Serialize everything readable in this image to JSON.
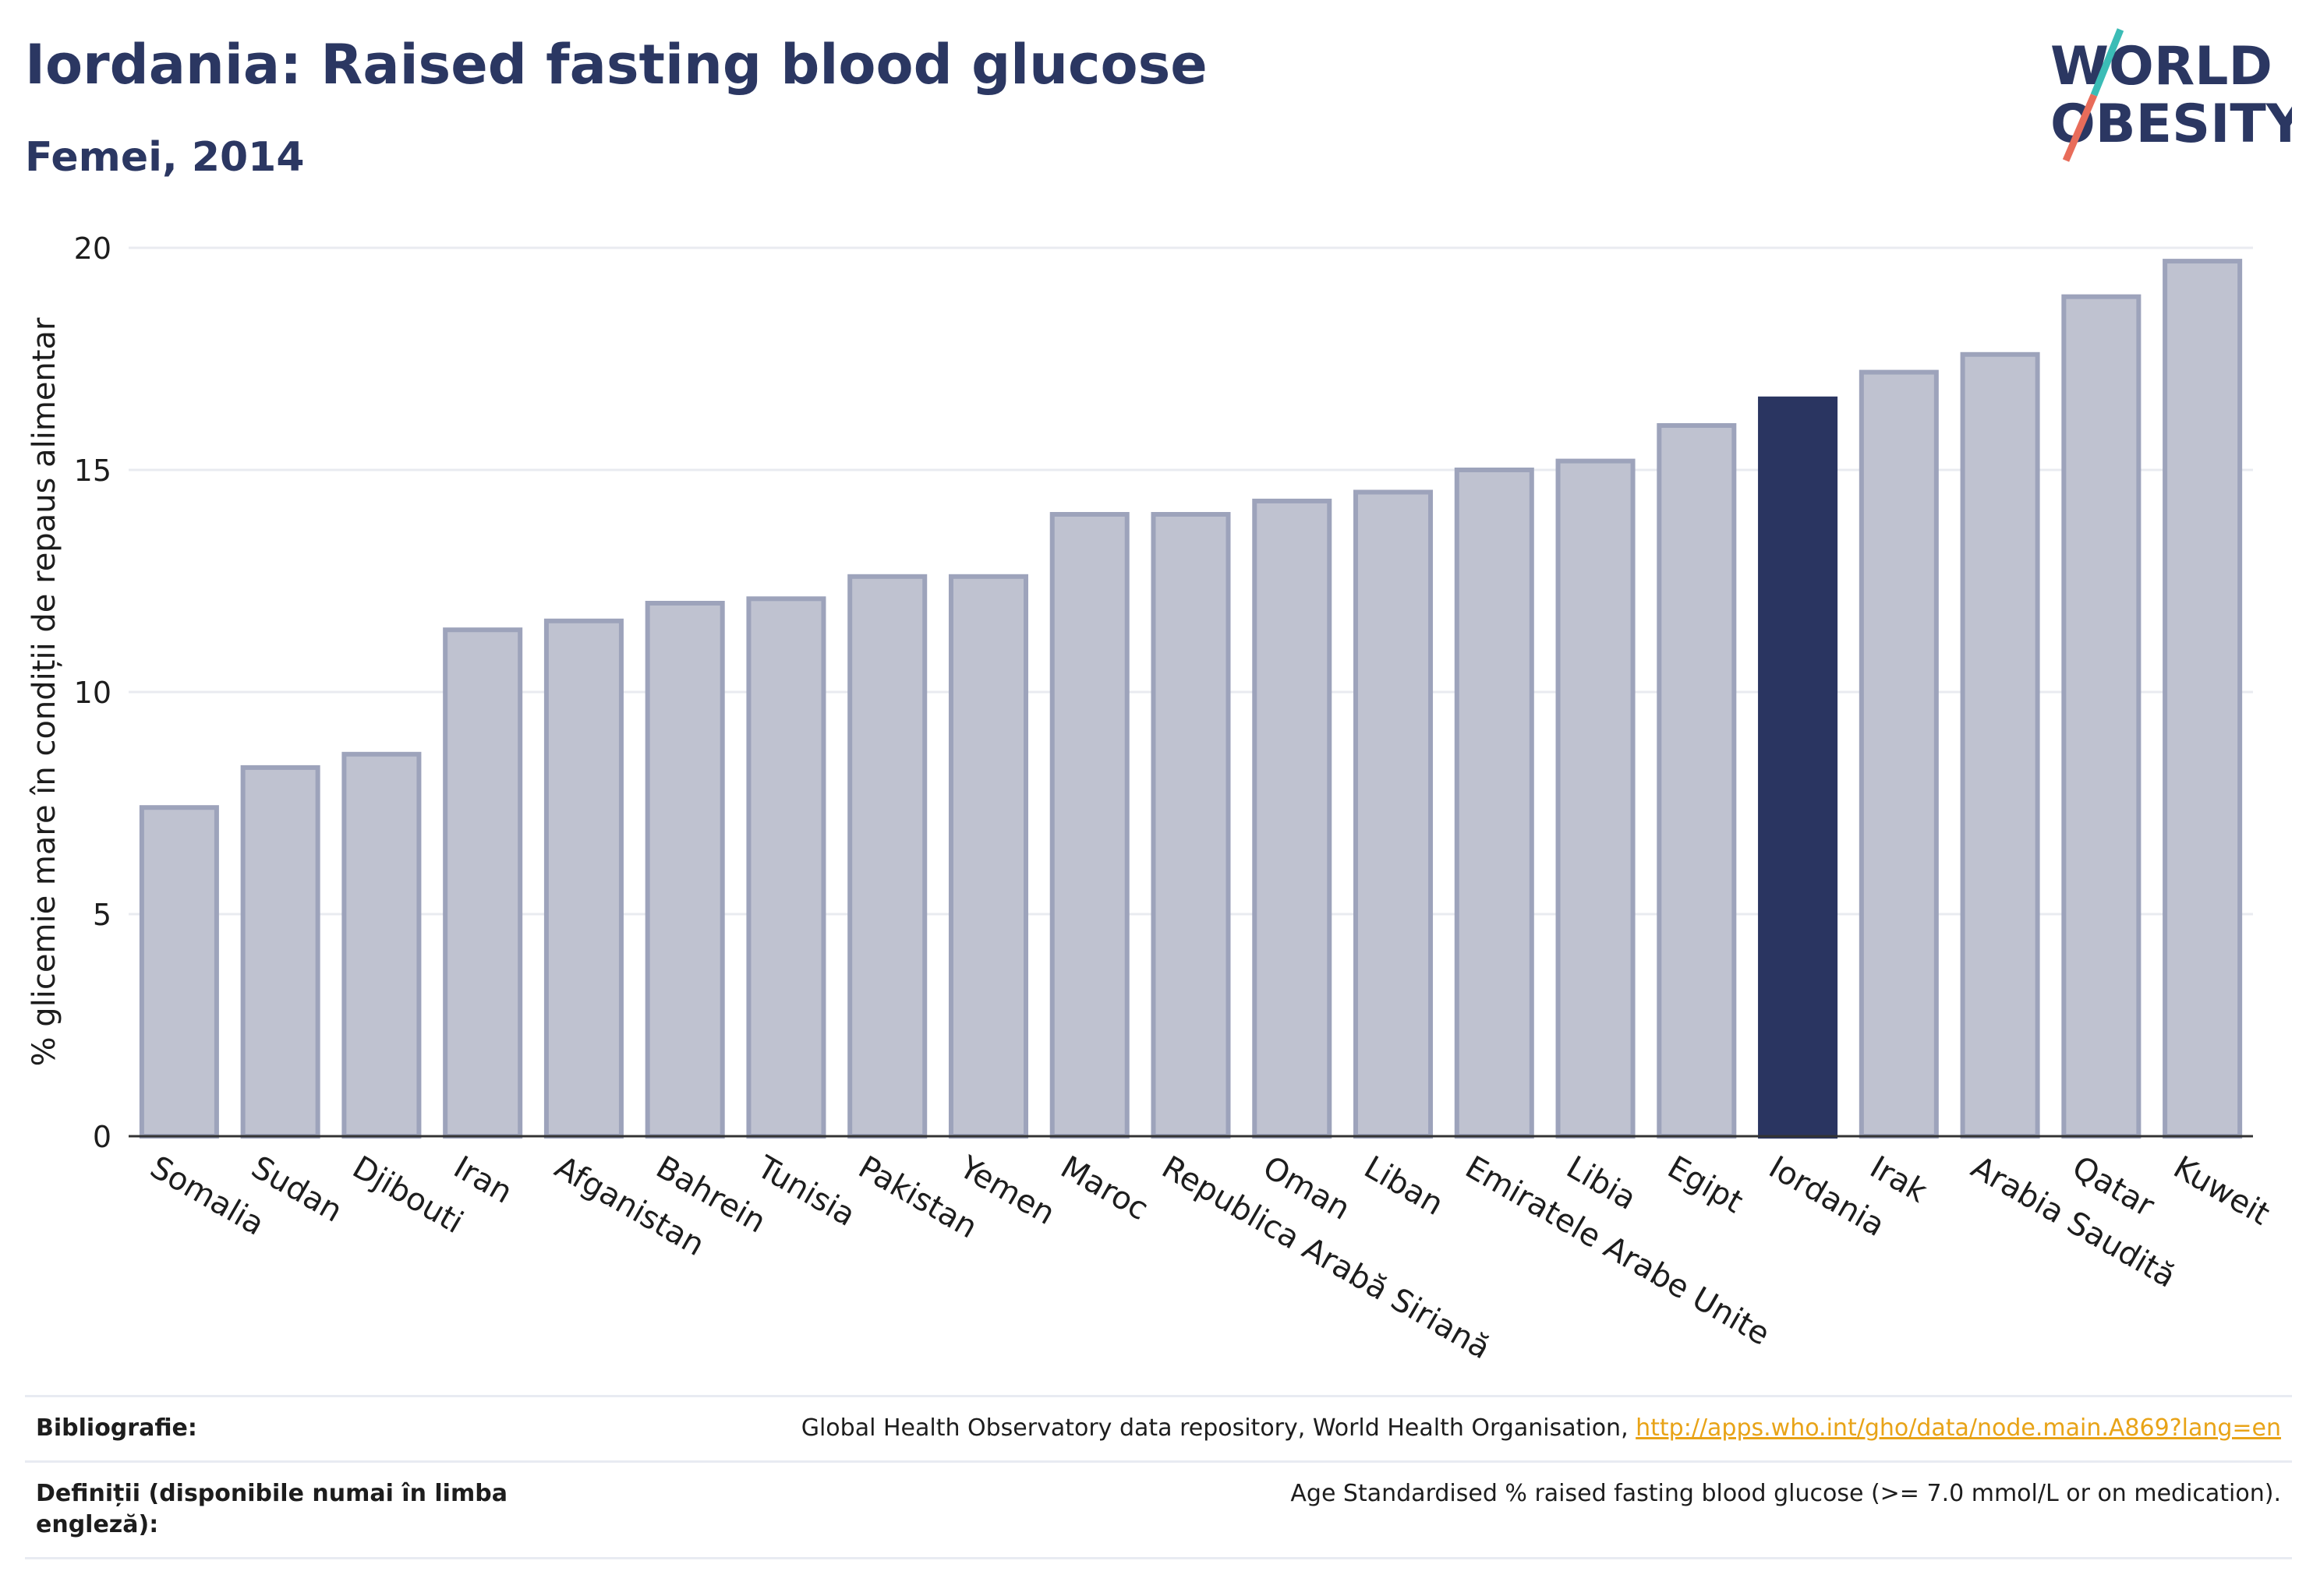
{
  "header": {
    "title": "Iordania: Raised fasting blood glucose",
    "subtitle": "Femei, 2014"
  },
  "logo": {
    "line1": "WORLD",
    "line2": "OBESITY"
  },
  "chart_data": {
    "type": "bar",
    "ylabel": "% glicemie mare în condiții de repaus alimentar",
    "ylim": [
      0,
      20
    ],
    "yticks": [
      0,
      5,
      10,
      15,
      20
    ],
    "grid": true,
    "highlight": "Iordania",
    "categories": [
      "Somalia",
      "Sudan",
      "Djibouti",
      "Iran",
      "Afganistan",
      "Bahrein",
      "Tunisia",
      "Pakistan",
      "Yemen",
      "Maroc",
      "Republica Arabă Siriană",
      "Oman",
      "Liban",
      "Emiratele Arabe Unite",
      "Libia",
      "Egipt",
      "Iordania",
      "Irak",
      "Arabia Saudită",
      "Qatar",
      "Kuweit"
    ],
    "values": [
      7.4,
      8.3,
      8.6,
      11.4,
      11.6,
      12.0,
      12.1,
      12.6,
      12.6,
      14.0,
      14.0,
      14.3,
      14.5,
      15.0,
      15.2,
      16.0,
      16.6,
      17.2,
      17.6,
      18.9,
      19.7
    ]
  },
  "colors": {
    "bar": "#bfc2d0",
    "bar_stroke": "#9da3bb",
    "highlight": "#2a3561",
    "grid": "#e9ebf0"
  },
  "footer": {
    "bibliography_label": "Bibliografie:",
    "bibliography_text": "Global Health Observatory data repository, World Health Organisation, ",
    "bibliography_link": "http://apps.who.int/gho/data/node.main.A869?lang=en",
    "definitions_label": "Definiții (disponibile numai în limba engleză):",
    "definitions_text": "Age Standardised % raised fasting blood glucose (>= 7.0 mmol/L or on medication)."
  }
}
